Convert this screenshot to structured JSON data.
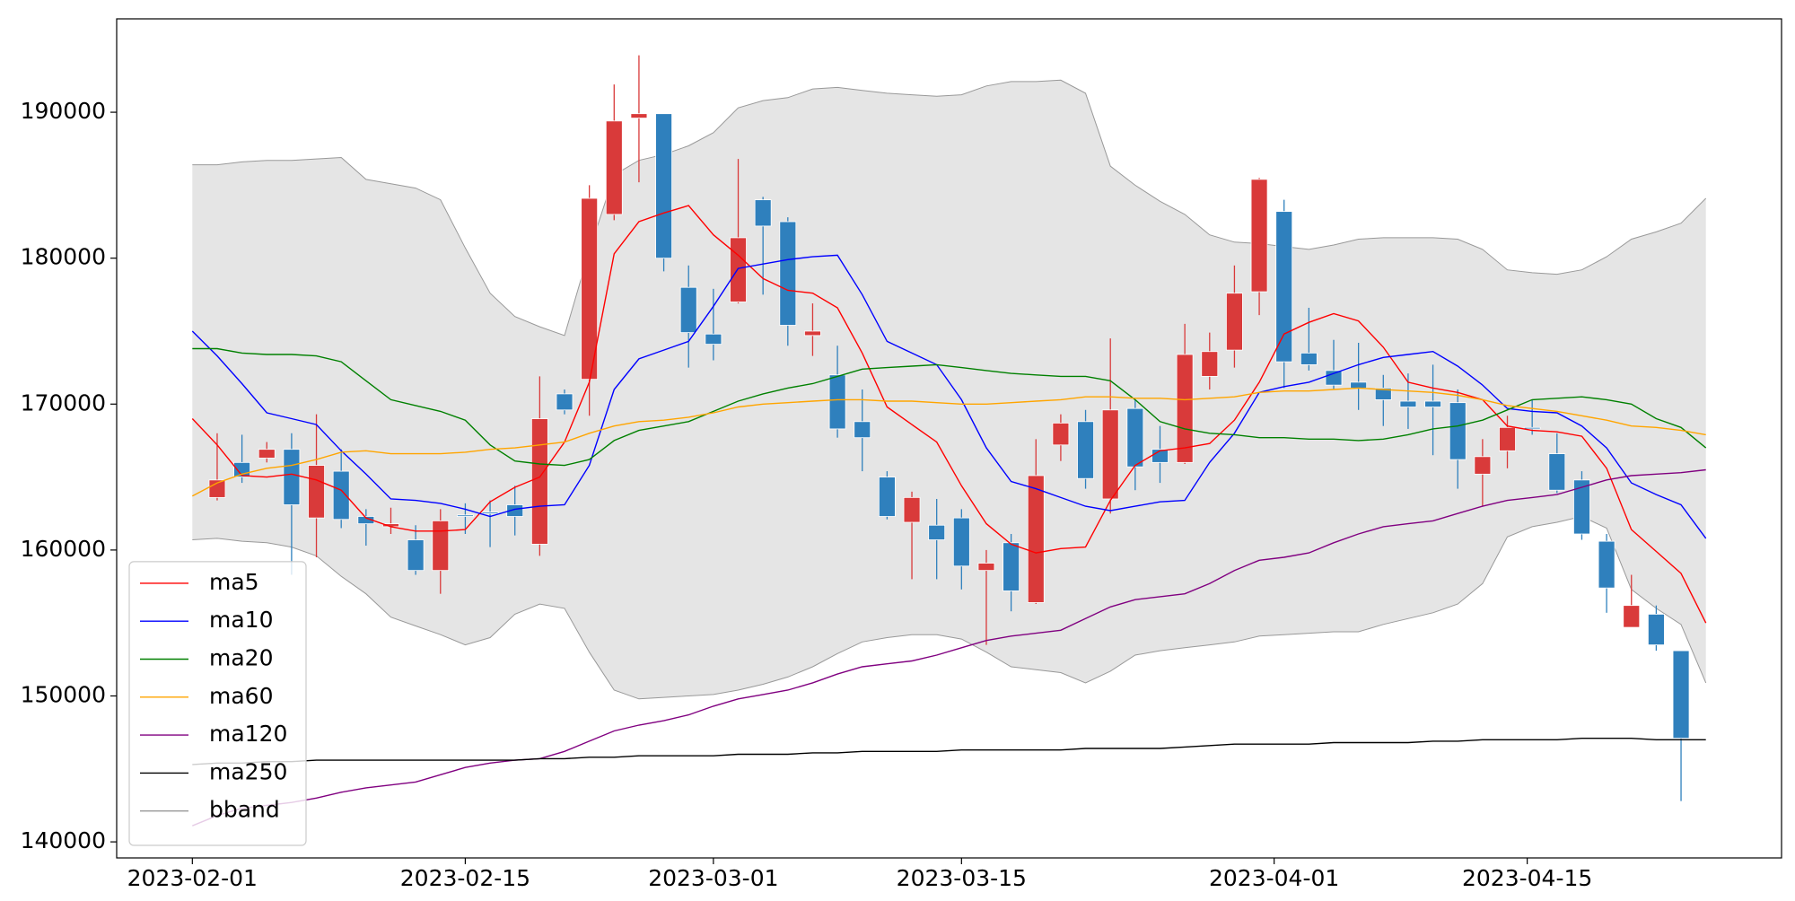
{
  "chart_data": {
    "type": "candlestick",
    "up_color": "#d93a3a",
    "down_color": "#2f80bd",
    "xlim": [
      -3.05,
      64.05
    ],
    "xticks": [
      {
        "value": 0,
        "label": "2023-02-01"
      },
      {
        "value": 11,
        "label": "2023-02-15"
      },
      {
        "value": 21,
        "label": "2023-03-01"
      },
      {
        "value": 31,
        "label": "2023-03-15"
      },
      {
        "value": 43.6,
        "label": "2023-04-01"
      },
      {
        "value": 53.8,
        "label": "2023-04-15"
      }
    ],
    "ylim": [
      138900,
      196400
    ],
    "yticks": [
      140000,
      150000,
      160000,
      170000,
      180000,
      190000
    ],
    "legend": "lower left",
    "candles": {
      "x": [
        1,
        2,
        3,
        4,
        5,
        6,
        7,
        8,
        9,
        10,
        11,
        12,
        13,
        14,
        15,
        16,
        17,
        18,
        19,
        20,
        21,
        22,
        23,
        24,
        25,
        26,
        27,
        28,
        29,
        30,
        31,
        32,
        33,
        34,
        35,
        36,
        37,
        38,
        39,
        40,
        41,
        42,
        43,
        44,
        45,
        46,
        47,
        48,
        49,
        50,
        51,
        52,
        53,
        54,
        55,
        56,
        57,
        58,
        59,
        60
      ],
      "open": [
        163600,
        166000,
        166300,
        166900,
        162200,
        165400,
        162300,
        161600,
        160700,
        158600,
        162400,
        162600,
        163100,
        160400,
        170700,
        171700,
        183000,
        189600,
        189900,
        178000,
        174800,
        177000,
        184000,
        182500,
        174700,
        172000,
        168800,
        165000,
        161900,
        161700,
        162200,
        158600,
        160500,
        156400,
        167200,
        168800,
        163500,
        169700,
        166900,
        166000,
        171900,
        173700,
        177700,
        183200,
        173500,
        172300,
        171500,
        171100,
        170200,
        170200,
        170100,
        165200,
        166800,
        168400,
        166600,
        164800,
        160600,
        154700,
        155600,
        153100
      ],
      "high": [
        168000,
        167900,
        167400,
        168000,
        169300,
        166900,
        162800,
        162900,
        161700,
        162800,
        163200,
        163400,
        164400,
        171900,
        171000,
        185000,
        191900,
        193900,
        189900,
        179500,
        177900,
        186800,
        184200,
        182800,
        176900,
        174000,
        171000,
        165400,
        164000,
        163500,
        162800,
        160000,
        161100,
        167600,
        169300,
        169600,
        174500,
        170300,
        168500,
        175500,
        174900,
        179500,
        185500,
        184000,
        176600,
        174400,
        174200,
        172000,
        172100,
        172700,
        171000,
        167600,
        169200,
        170300,
        168000,
        165400,
        161100,
        158300,
        156200,
        153100
      ],
      "low": [
        163400,
        164600,
        166000,
        158300,
        159500,
        161500,
        160300,
        161100,
        158300,
        157000,
        161100,
        160200,
        161000,
        159600,
        169300,
        169200,
        182600,
        185200,
        179100,
        172500,
        173000,
        176900,
        177500,
        174000,
        173300,
        167700,
        165400,
        162100,
        158000,
        158000,
        157300,
        153500,
        155800,
        156300,
        166100,
        164200,
        162500,
        164100,
        164600,
        165900,
        171000,
        172500,
        176100,
        171100,
        172300,
        171000,
        169600,
        168500,
        168300,
        166500,
        164200,
        163000,
        165600,
        167900,
        163900,
        160700,
        155700,
        154700,
        153100,
        142800
      ],
      "close": [
        164800,
        165000,
        166900,
        163100,
        165800,
        162100,
        161800,
        161800,
        158600,
        162000,
        162300,
        162500,
        162300,
        169000,
        169600,
        184100,
        189400,
        189900,
        180000,
        174900,
        174100,
        181400,
        182200,
        175400,
        175000,
        168300,
        167700,
        162300,
        163600,
        160700,
        158900,
        159100,
        157200,
        165100,
        168700,
        164900,
        169600,
        165700,
        166000,
        173400,
        173600,
        177600,
        185400,
        172900,
        172700,
        171300,
        171100,
        170300,
        169800,
        169800,
        166200,
        166400,
        168400,
        168300,
        164100,
        161100,
        157400,
        156200,
        153500,
        147100
      ]
    },
    "x": [
      0,
      1,
      2,
      3,
      4,
      5,
      6,
      7,
      8,
      9,
      10,
      11,
      12,
      13,
      14,
      15,
      16,
      17,
      18,
      19,
      20,
      21,
      22,
      23,
      24,
      25,
      26,
      27,
      28,
      29,
      30,
      31,
      32,
      33,
      34,
      35,
      36,
      37,
      38,
      39,
      40,
      41,
      42,
      43,
      44,
      45,
      46,
      47,
      48,
      49,
      50,
      51,
      52,
      53,
      54,
      55,
      56,
      57,
      58,
      59,
      60,
      61
    ],
    "series": [
      {
        "name": "ma5",
        "color": "#ff0000",
        "values": [
          169000,
          167200,
          165100,
          165000,
          165200,
          164800,
          164100,
          162200,
          161600,
          161300,
          161300,
          161400,
          163300,
          164300,
          165000,
          167400,
          171500,
          180300,
          182500,
          183100,
          183600,
          181600,
          180200,
          178600,
          177800,
          177600,
          176600,
          173500,
          169800,
          168600,
          167400,
          164400,
          161800,
          160400,
          159800,
          160100,
          160200,
          163400,
          165800,
          166800,
          167000,
          167300,
          168900,
          171500,
          174800,
          175600,
          176200,
          175700,
          173900,
          171500,
          171100,
          170800,
          170300,
          168500,
          168200,
          168100,
          167800,
          165600,
          161400,
          159900,
          158400,
          155000
        ]
      },
      {
        "name": "ma10",
        "color": "#0000ff",
        "values": [
          175000,
          173300,
          171400,
          169400,
          169000,
          168600,
          166800,
          165200,
          163500,
          163400,
          163200,
          162800,
          162300,
          162800,
          163000,
          163100,
          165800,
          171000,
          173100,
          173700,
          174300,
          176700,
          179300,
          179600,
          179900,
          180100,
          180200,
          177500,
          174300,
          173500,
          172700,
          170300,
          167000,
          164700,
          164200,
          163600,
          163000,
          162700,
          163000,
          163300,
          163400,
          166000,
          168000,
          170800,
          171200,
          171500,
          172100,
          172700,
          173200,
          173400,
          173600,
          172600,
          171300,
          169700,
          169500,
          169400,
          168500,
          167000,
          164600,
          163800,
          163100,
          160800
        ]
      },
      {
        "name": "ma20",
        "color": "#008000",
        "values": [
          173800,
          173800,
          173500,
          173400,
          173400,
          173300,
          172900,
          171600,
          170300,
          169900,
          169500,
          168900,
          167200,
          166100,
          165900,
          165800,
          166200,
          167500,
          168200,
          168500,
          168800,
          169500,
          170200,
          170700,
          171100,
          171400,
          171900,
          172400,
          172500,
          172600,
          172700,
          172500,
          172300,
          172100,
          172000,
          171900,
          171900,
          171600,
          170300,
          168800,
          168300,
          168000,
          167900,
          167700,
          167700,
          167600,
          167600,
          167500,
          167600,
          167900,
          168300,
          168500,
          168900,
          169600,
          170300,
          170400,
          170500,
          170300,
          170000,
          169000,
          168400,
          167000
        ]
      },
      {
        "name": "ma60",
        "color": "#ffa500",
        "values": [
          163700,
          164600,
          165200,
          165600,
          165800,
          166200,
          166700,
          166800,
          166600,
          166600,
          166600,
          166700,
          166900,
          167000,
          167200,
          167400,
          168000,
          168500,
          168800,
          168900,
          169100,
          169400,
          169800,
          170000,
          170100,
          170200,
          170300,
          170300,
          170200,
          170200,
          170100,
          170000,
          170000,
          170100,
          170200,
          170300,
          170500,
          170500,
          170400,
          170400,
          170300,
          170400,
          170500,
          170800,
          170900,
          170900,
          171000,
          171100,
          171000,
          170900,
          170800,
          170600,
          170300,
          169900,
          169700,
          169500,
          169200,
          168900,
          168500,
          168400,
          168200,
          167900
        ]
      },
      {
        "name": "ma120",
        "color": "#800080",
        "values": [
          141100,
          141800,
          142300,
          142500,
          142700,
          143000,
          143400,
          143700,
          143900,
          144100,
          144600,
          145100,
          145400,
          145600,
          145700,
          146200,
          146900,
          147600,
          148000,
          148300,
          148700,
          149300,
          149800,
          150100,
          150400,
          150900,
          151500,
          152000,
          152200,
          152400,
          152800,
          153300,
          153800,
          154100,
          154300,
          154500,
          155300,
          156100,
          156600,
          156800,
          157000,
          157700,
          158600,
          159300,
          159500,
          159800,
          160500,
          161100,
          161600,
          161800,
          162000,
          162500,
          163000,
          163400,
          163600,
          163800,
          164300,
          164800,
          165100,
          165200,
          165300,
          165500
        ]
      },
      {
        "name": "ma250",
        "color": "#000000",
        "values": [
          145300,
          145400,
          145400,
          145500,
          145500,
          145600,
          145600,
          145600,
          145600,
          145600,
          145600,
          145600,
          145600,
          145600,
          145700,
          145700,
          145800,
          145800,
          145900,
          145900,
          145900,
          145900,
          146000,
          146000,
          146000,
          146100,
          146100,
          146200,
          146200,
          146200,
          146200,
          146300,
          146300,
          146300,
          146300,
          146300,
          146400,
          146400,
          146400,
          146400,
          146500,
          146600,
          146700,
          146700,
          146700,
          146700,
          146800,
          146800,
          146800,
          146800,
          146900,
          146900,
          147000,
          147000,
          147000,
          147000,
          147100,
          147100,
          147100,
          147000,
          147000,
          147000
        ]
      }
    ],
    "bband": {
      "name": "bband",
      "color": "#999999",
      "fill": "#e5e5e5",
      "upper": [
        186400,
        186400,
        186600,
        186700,
        186700,
        186800,
        186900,
        185400,
        185100,
        184800,
        184000,
        180700,
        177600,
        176000,
        175300,
        174700,
        180500,
        185700,
        186700,
        187100,
        187700,
        188600,
        190300,
        190800,
        191000,
        191600,
        191700,
        191500,
        191300,
        191200,
        191100,
        191200,
        191800,
        192100,
        192100,
        192200,
        191300,
        186300,
        185000,
        183900,
        183000,
        181600,
        181100,
        181000,
        180800,
        180600,
        180900,
        181300,
        181400,
        181400,
        181400,
        181300,
        180600,
        179200,
        179000,
        178900,
        179200,
        180100,
        181300,
        181800,
        182400,
        184100
      ],
      "lower": [
        160700,
        160800,
        160600,
        160500,
        160200,
        159600,
        158200,
        157000,
        155400,
        154800,
        154200,
        153500,
        154000,
        155600,
        156300,
        156000,
        153000,
        150400,
        149800,
        149900,
        150000,
        150100,
        150400,
        150800,
        151300,
        152000,
        152900,
        153700,
        154000,
        154200,
        154200,
        153900,
        153000,
        152000,
        151800,
        151600,
        150900,
        151700,
        152800,
        153100,
        153300,
        153500,
        153700,
        154100,
        154200,
        154300,
        154400,
        154400,
        154900,
        155300,
        155700,
        156300,
        157700,
        160900,
        161600,
        161900,
        162300,
        161500,
        157300,
        156000,
        154900,
        150900
      ]
    }
  }
}
